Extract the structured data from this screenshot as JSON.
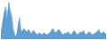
{
  "chart_data": {
    "type": "area",
    "values": [
      12,
      32,
      48,
      60,
      38,
      68,
      52,
      42,
      18,
      8,
      5,
      22,
      40,
      18,
      14,
      20,
      16,
      14,
      18,
      14,
      10,
      16,
      14,
      10,
      8,
      12,
      10,
      8,
      12,
      10,
      8,
      10,
      12,
      16,
      20,
      14,
      12,
      16,
      18,
      14,
      10,
      8,
      12,
      10,
      14,
      10,
      8,
      12,
      16,
      12,
      8,
      10,
      14,
      12,
      16,
      10,
      8,
      12,
      14,
      10,
      8,
      10,
      12,
      14,
      18,
      12,
      10,
      14,
      12,
      8
    ],
    "color": "#5b9fd4",
    "ylim": [
      0,
      70
    ],
    "tick_labels": false
  }
}
